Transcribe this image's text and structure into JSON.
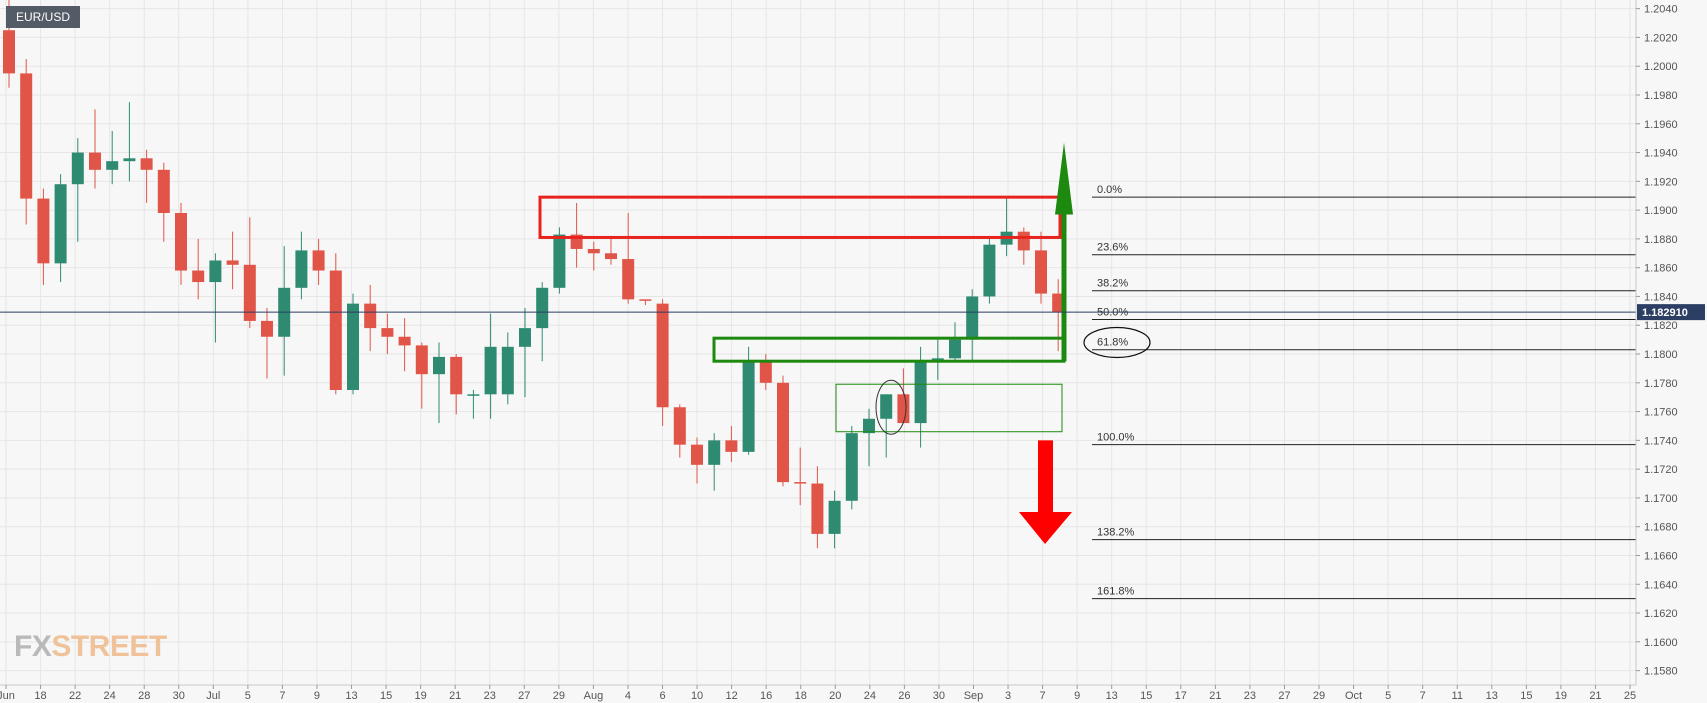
{
  "symbol": "EUR/USD",
  "brand": {
    "fx": "FX",
    "street": "STREET"
  },
  "current_price_label": "1.182910",
  "colors": {
    "up": "#2e8b72",
    "down": "#e05548",
    "resistance": "#e8231e",
    "support": "#1d8a0f",
    "price_tag": "#2c3e63"
  },
  "chart_data": {
    "type": "candlestick",
    "title": "",
    "ylim": [
      1.157,
      1.2046
    ],
    "y_ticks": [
      "1.2040",
      "1.2020",
      "1.2000",
      "1.1980",
      "1.1960",
      "1.1940",
      "1.1920",
      "1.1900",
      "1.1880",
      "1.1860",
      "1.1840",
      "1.1820",
      "1.1800",
      "1.1780",
      "1.1760",
      "1.1740",
      "1.1720",
      "1.1700",
      "1.1680",
      "1.1660",
      "1.1640",
      "1.1620",
      "1.1600",
      "1.1580"
    ],
    "x_ticks": [
      "Jun",
      "18",
      "22",
      "24",
      "28",
      "30",
      "Jul",
      "5",
      "7",
      "9",
      "13",
      "15",
      "19",
      "21",
      "23",
      "27",
      "29",
      "Aug",
      "4",
      "6",
      "10",
      "12",
      "16",
      "18",
      "20",
      "24",
      "26",
      "30",
      "Sep",
      "3",
      "7",
      "9",
      "13",
      "15",
      "17",
      "21",
      "23",
      "27",
      "29",
      "Oct",
      "5",
      "7",
      "11",
      "13",
      "15",
      "19",
      "21",
      "25"
    ],
    "current_price": 1.18291,
    "candles": [
      {
        "o": 1.2025,
        "h": 1.2055,
        "l": 1.1985,
        "c": 1.1995
      },
      {
        "o": 1.1995,
        "h": 1.2005,
        "l": 1.189,
        "c": 1.1908
      },
      {
        "o": 1.1908,
        "h": 1.1915,
        "l": 1.1848,
        "c": 1.1863
      },
      {
        "o": 1.1863,
        "h": 1.1925,
        "l": 1.185,
        "c": 1.1918
      },
      {
        "o": 1.1918,
        "h": 1.195,
        "l": 1.1878,
        "c": 1.194
      },
      {
        "o": 1.194,
        "h": 1.197,
        "l": 1.1915,
        "c": 1.1928
      },
      {
        "o": 1.1928,
        "h": 1.1955,
        "l": 1.1918,
        "c": 1.1934
      },
      {
        "o": 1.1934,
        "h": 1.1975,
        "l": 1.192,
        "c": 1.1936
      },
      {
        "o": 1.1936,
        "h": 1.1942,
        "l": 1.1905,
        "c": 1.1928
      },
      {
        "o": 1.1928,
        "h": 1.1933,
        "l": 1.1878,
        "c": 1.1898
      },
      {
        "o": 1.1898,
        "h": 1.1905,
        "l": 1.1848,
        "c": 1.1858
      },
      {
        "o": 1.1858,
        "h": 1.188,
        "l": 1.1838,
        "c": 1.185
      },
      {
        "o": 1.185,
        "h": 1.187,
        "l": 1.1808,
        "c": 1.1865
      },
      {
        "o": 1.1865,
        "h": 1.1885,
        "l": 1.1845,
        "c": 1.1862
      },
      {
        "o": 1.1862,
        "h": 1.1895,
        "l": 1.1818,
        "c": 1.1823
      },
      {
        "o": 1.1823,
        "h": 1.1832,
        "l": 1.1783,
        "c": 1.1812
      },
      {
        "o": 1.1812,
        "h": 1.1875,
        "l": 1.1785,
        "c": 1.1846
      },
      {
        "o": 1.1846,
        "h": 1.1885,
        "l": 1.1838,
        "c": 1.1872
      },
      {
        "o": 1.1872,
        "h": 1.188,
        "l": 1.1848,
        "c": 1.1858
      },
      {
        "o": 1.1858,
        "h": 1.187,
        "l": 1.1772,
        "c": 1.1775
      },
      {
        "o": 1.1775,
        "h": 1.1842,
        "l": 1.1772,
        "c": 1.1835
      },
      {
        "o": 1.1835,
        "h": 1.1848,
        "l": 1.1802,
        "c": 1.1818
      },
      {
        "o": 1.1818,
        "h": 1.1828,
        "l": 1.18,
        "c": 1.1812
      },
      {
        "o": 1.1812,
        "h": 1.1825,
        "l": 1.1788,
        "c": 1.1806
      },
      {
        "o": 1.1806,
        "h": 1.1808,
        "l": 1.1762,
        "c": 1.1786
      },
      {
        "o": 1.1786,
        "h": 1.1808,
        "l": 1.1752,
        "c": 1.1798
      },
      {
        "o": 1.1798,
        "h": 1.18,
        "l": 1.1758,
        "c": 1.1772
      },
      {
        "o": 1.1772,
        "h": 1.1775,
        "l": 1.1755,
        "c": 1.1772
      },
      {
        "o": 1.1772,
        "h": 1.1828,
        "l": 1.1755,
        "c": 1.1805
      },
      {
        "o": 1.1772,
        "h": 1.1815,
        "l": 1.1765,
        "c": 1.1805
      },
      {
        "o": 1.1805,
        "h": 1.1832,
        "l": 1.177,
        "c": 1.1818
      },
      {
        "o": 1.1818,
        "h": 1.185,
        "l": 1.1795,
        "c": 1.1846
      },
      {
        "o": 1.1846,
        "h": 1.1888,
        "l": 1.1842,
        "c": 1.1883
      },
      {
        "o": 1.1883,
        "h": 1.1905,
        "l": 1.186,
        "c": 1.1873
      },
      {
        "o": 1.1873,
        "h": 1.1878,
        "l": 1.1858,
        "c": 1.187
      },
      {
        "o": 1.187,
        "h": 1.188,
        "l": 1.1862,
        "c": 1.1866
      },
      {
        "o": 1.1866,
        "h": 1.1898,
        "l": 1.1835,
        "c": 1.1838
      },
      {
        "o": 1.1838,
        "h": 1.1838,
        "l": 1.1834,
        "c": 1.1837
      },
      {
        "o": 1.1835,
        "h": 1.1838,
        "l": 1.175,
        "c": 1.1763
      },
      {
        "o": 1.1763,
        "h": 1.1765,
        "l": 1.1728,
        "c": 1.1737
      },
      {
        "o": 1.1737,
        "h": 1.1742,
        "l": 1.171,
        "c": 1.1723
      },
      {
        "o": 1.1723,
        "h": 1.1745,
        "l": 1.1705,
        "c": 1.174
      },
      {
        "o": 1.174,
        "h": 1.175,
        "l": 1.1725,
        "c": 1.1732
      },
      {
        "o": 1.1732,
        "h": 1.1805,
        "l": 1.173,
        "c": 1.1795
      },
      {
        "o": 1.1795,
        "h": 1.18,
        "l": 1.1775,
        "c": 1.178
      },
      {
        "o": 1.178,
        "h": 1.1785,
        "l": 1.1708,
        "c": 1.1711
      },
      {
        "o": 1.1711,
        "h": 1.1735,
        "l": 1.1695,
        "c": 1.171
      },
      {
        "o": 1.171,
        "h": 1.1722,
        "l": 1.1665,
        "c": 1.1675
      },
      {
        "o": 1.1675,
        "h": 1.1705,
        "l": 1.1665,
        "c": 1.1698
      },
      {
        "o": 1.1698,
        "h": 1.175,
        "l": 1.1692,
        "c": 1.1745
      },
      {
        "o": 1.1745,
        "h": 1.1762,
        "l": 1.1722,
        "c": 1.1755
      },
      {
        "o": 1.1755,
        "h": 1.1772,
        "l": 1.1728,
        "c": 1.1772
      },
      {
        "o": 1.1772,
        "h": 1.179,
        "l": 1.1752,
        "c": 1.1752
      },
      {
        "o": 1.1752,
        "h": 1.1805,
        "l": 1.1735,
        "c": 1.1795
      },
      {
        "o": 1.1795,
        "h": 1.1812,
        "l": 1.1782,
        "c": 1.1797
      },
      {
        "o": 1.1797,
        "h": 1.1822,
        "l": 1.1795,
        "c": 1.181
      },
      {
        "o": 1.181,
        "h": 1.1845,
        "l": 1.1795,
        "c": 1.184
      },
      {
        "o": 1.184,
        "h": 1.1882,
        "l": 1.1835,
        "c": 1.1876
      },
      {
        "o": 1.1876,
        "h": 1.1908,
        "l": 1.1868,
        "c": 1.1885
      },
      {
        "o": 1.1885,
        "h": 1.1888,
        "l": 1.1862,
        "c": 1.1872
      },
      {
        "o": 1.1872,
        "h": 1.1885,
        "l": 1.1835,
        "c": 1.1842
      },
      {
        "o": 1.1842,
        "h": 1.1852,
        "l": 1.1802,
        "c": 1.1829
      }
    ],
    "levels": {
      "resistance_zone": [
        1.1881,
        1.1909
      ],
      "support_zone": [
        1.1795,
        1.1811
      ],
      "consolidation_box": [
        1.1746,
        1.1779
      ]
    },
    "fibonacci": [
      {
        "label": "0.0%",
        "price": 1.1909
      },
      {
        "label": "23.6%",
        "price": 1.1869
      },
      {
        "label": "38.2%",
        "price": 1.1844
      },
      {
        "label": "50.0%",
        "price": 1.1824
      },
      {
        "label": "61.8%",
        "price": 1.1803
      },
      {
        "label": "100.0%",
        "price": 1.1737
      },
      {
        "label": "138.2%",
        "price": 1.1671
      },
      {
        "label": "161.8%",
        "price": 1.163
      }
    ]
  }
}
